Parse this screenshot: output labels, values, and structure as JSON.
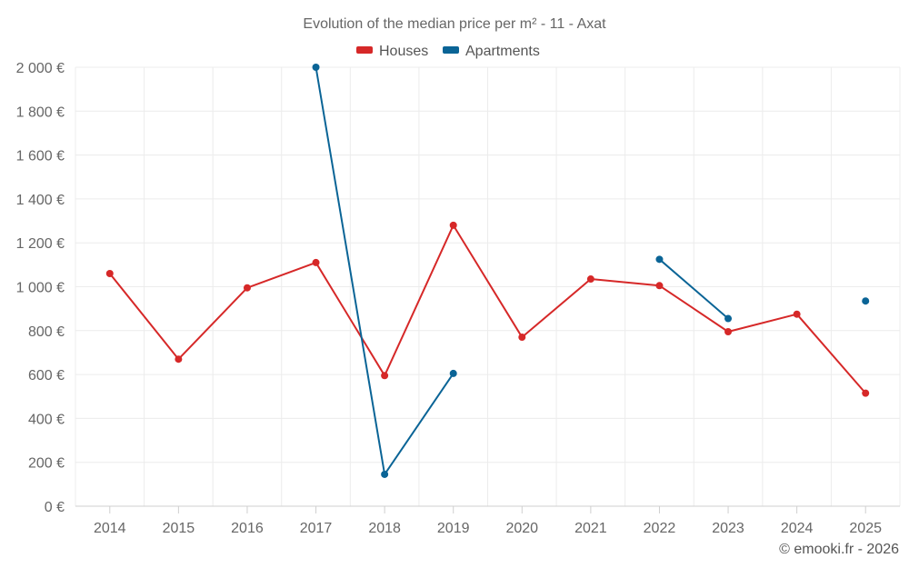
{
  "chart_data": {
    "type": "line",
    "title": "Evolution of the median price per m² - 11 - Axat",
    "categories": [
      "2014",
      "2015",
      "2016",
      "2017",
      "2018",
      "2019",
      "2020",
      "2021",
      "2022",
      "2023",
      "2024",
      "2025"
    ],
    "ylim": [
      0,
      2000
    ],
    "yticks": [
      0,
      200,
      400,
      600,
      800,
      1000,
      1200,
      1400,
      1600,
      1800,
      2000
    ],
    "ytick_labels": [
      "0 €",
      "200 €",
      "400 €",
      "600 €",
      "800 €",
      "1 000 €",
      "1 200 €",
      "1 400 €",
      "1 600 €",
      "1 800 €",
      "2 000 €"
    ],
    "grid": true,
    "legend_position": "top-center",
    "series": [
      {
        "name": "Houses",
        "color": "#d62828",
        "values": [
          1060,
          670,
          995,
          1110,
          595,
          1280,
          770,
          1035,
          1005,
          795,
          875,
          515
        ]
      },
      {
        "name": "Apartments",
        "color": "#0a6496",
        "values": [
          null,
          null,
          null,
          2000,
          145,
          605,
          null,
          null,
          1125,
          855,
          null,
          935
        ]
      }
    ],
    "credit": "© emooki.fr - 2026"
  }
}
